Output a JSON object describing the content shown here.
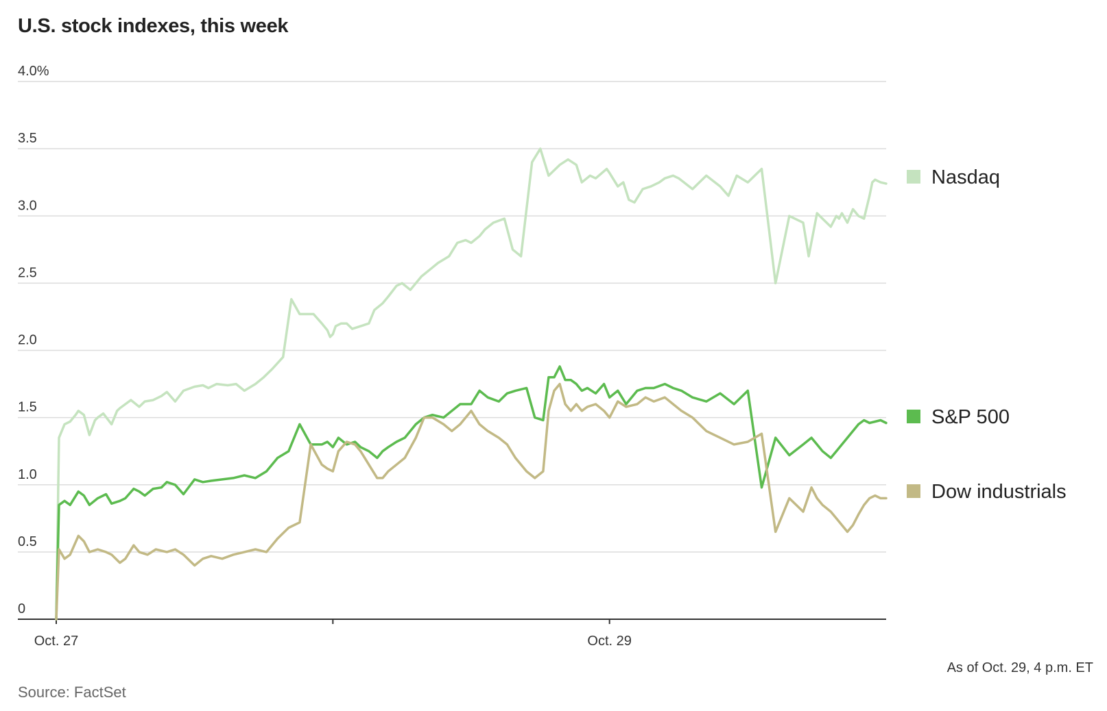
{
  "title": "U.S. stock indexes, this week",
  "note": "As of Oct. 29, 4 p.m. ET",
  "source": "Source: FactSet",
  "chart_data": {
    "type": "line",
    "title": "U.S. stock indexes, this week",
    "xlabel": "",
    "ylabel": "",
    "ylim": [
      0,
      4.0
    ],
    "yticks": [
      0,
      0.5,
      1.0,
      1.5,
      2.0,
      2.5,
      3.0,
      3.5,
      4.0
    ],
    "ytick_labels": [
      "0",
      "0.5",
      "1.0",
      "1.5",
      "2.0",
      "2.5",
      "3.0",
      "3.5",
      "4.0%"
    ],
    "xlim": [
      0,
      3
    ],
    "xticks": [
      0,
      1,
      2
    ],
    "xtick_labels": [
      "Oct. 27",
      "",
      "Oct. 29"
    ],
    "grid": true,
    "legend": "right",
    "series": [
      {
        "name": "Nasdaq",
        "color": "#c5e3bf",
        "x": [
          0,
          0.01,
          0.03,
          0.05,
          0.07,
          0.08,
          0.1,
          0.12,
          0.14,
          0.15,
          0.17,
          0.2,
          0.22,
          0.23,
          0.25,
          0.27,
          0.3,
          0.32,
          0.35,
          0.38,
          0.4,
          0.43,
          0.46,
          0.5,
          0.53,
          0.55,
          0.58,
          0.62,
          0.65,
          0.68,
          0.72,
          0.75,
          0.78,
          0.82,
          0.85,
          0.88,
          0.93,
          0.96,
          0.98,
          0.99,
          1.0,
          1.01,
          1.03,
          1.05,
          1.07,
          1.1,
          1.13,
          1.15,
          1.18,
          1.2,
          1.23,
          1.25,
          1.28,
          1.32,
          1.35,
          1.38,
          1.42,
          1.45,
          1.48,
          1.5,
          1.53,
          1.55,
          1.58,
          1.62,
          1.65,
          1.68,
          1.72,
          1.75,
          1.78,
          1.82,
          1.85,
          1.88,
          1.9,
          1.93,
          1.95,
          1.99,
          2.0,
          2.03,
          2.05,
          2.07,
          2.09,
          2.12,
          2.15,
          2.18,
          2.2,
          2.23,
          2.25,
          2.3,
          2.35,
          2.4,
          2.43,
          2.46,
          2.5,
          2.55,
          2.6,
          2.65,
          2.7,
          2.72,
          2.75,
          2.77,
          2.8,
          2.82,
          2.83,
          2.84,
          2.86,
          2.88,
          2.9,
          2.92,
          2.94,
          2.95,
          2.96,
          2.98,
          3.0
        ],
        "values": [
          0,
          1.35,
          1.45,
          1.47,
          1.52,
          1.55,
          1.52,
          1.37,
          1.48,
          1.5,
          1.53,
          1.45,
          1.55,
          1.57,
          1.6,
          1.63,
          1.58,
          1.62,
          1.63,
          1.66,
          1.69,
          1.62,
          1.7,
          1.73,
          1.74,
          1.72,
          1.75,
          1.74,
          1.75,
          1.7,
          1.75,
          1.8,
          1.86,
          1.95,
          2.38,
          2.27,
          2.27,
          2.2,
          2.15,
          2.1,
          2.12,
          2.18,
          2.2,
          2.2,
          2.16,
          2.18,
          2.2,
          2.3,
          2.35,
          2.4,
          2.48,
          2.5,
          2.45,
          2.55,
          2.6,
          2.65,
          2.7,
          2.8,
          2.82,
          2.8,
          2.85,
          2.9,
          2.95,
          2.98,
          2.75,
          2.7,
          3.4,
          3.5,
          3.3,
          3.38,
          3.42,
          3.38,
          3.25,
          3.3,
          3.28,
          3.35,
          3.32,
          3.22,
          3.25,
          3.12,
          3.1,
          3.2,
          3.22,
          3.25,
          3.28,
          3.3,
          3.28,
          3.2,
          3.3,
          3.22,
          3.15,
          3.3,
          3.25,
          3.35,
          2.5,
          3.0,
          2.95,
          2.7,
          3.02,
          2.98,
          2.92,
          3.0,
          2.98,
          3.02,
          2.95,
          3.05,
          3.0,
          2.98,
          3.15,
          3.25,
          3.27,
          3.25,
          3.24
        ]
      },
      {
        "name": "S&P 500",
        "color": "#5cbb4f",
        "x": [
          0,
          0.01,
          0.03,
          0.05,
          0.08,
          0.1,
          0.12,
          0.15,
          0.18,
          0.2,
          0.23,
          0.25,
          0.28,
          0.3,
          0.32,
          0.35,
          0.38,
          0.4,
          0.43,
          0.46,
          0.5,
          0.53,
          0.56,
          0.6,
          0.64,
          0.68,
          0.72,
          0.76,
          0.8,
          0.84,
          0.88,
          0.92,
          0.96,
          0.98,
          0.99,
          1.0,
          1.02,
          1.05,
          1.08,
          1.1,
          1.13,
          1.16,
          1.18,
          1.2,
          1.23,
          1.26,
          1.3,
          1.33,
          1.36,
          1.4,
          1.43,
          1.46,
          1.5,
          1.53,
          1.56,
          1.6,
          1.63,
          1.66,
          1.7,
          1.73,
          1.76,
          1.78,
          1.8,
          1.82,
          1.84,
          1.86,
          1.88,
          1.9,
          1.92,
          1.95,
          1.98,
          2.0,
          2.03,
          2.06,
          2.1,
          2.13,
          2.16,
          2.2,
          2.23,
          2.26,
          2.3,
          2.35,
          2.4,
          2.45,
          2.5,
          2.55,
          2.6,
          2.65,
          2.7,
          2.73,
          2.75,
          2.77,
          2.8,
          2.82,
          2.84,
          2.86,
          2.88,
          2.9,
          2.92,
          2.94,
          2.96,
          2.98,
          3.0
        ],
        "values": [
          0,
          0.85,
          0.88,
          0.85,
          0.95,
          0.92,
          0.85,
          0.9,
          0.93,
          0.86,
          0.88,
          0.9,
          0.97,
          0.95,
          0.92,
          0.97,
          0.98,
          1.02,
          1.0,
          0.93,
          1.04,
          1.02,
          1.03,
          1.04,
          1.05,
          1.07,
          1.05,
          1.1,
          1.2,
          1.25,
          1.45,
          1.3,
          1.3,
          1.32,
          1.3,
          1.28,
          1.35,
          1.3,
          1.32,
          1.28,
          1.25,
          1.2,
          1.25,
          1.28,
          1.32,
          1.35,
          1.45,
          1.5,
          1.52,
          1.5,
          1.55,
          1.6,
          1.6,
          1.7,
          1.65,
          1.62,
          1.68,
          1.7,
          1.72,
          1.5,
          1.48,
          1.8,
          1.8,
          1.88,
          1.78,
          1.78,
          1.75,
          1.7,
          1.72,
          1.68,
          1.75,
          1.65,
          1.7,
          1.6,
          1.7,
          1.72,
          1.72,
          1.75,
          1.72,
          1.7,
          1.65,
          1.62,
          1.68,
          1.6,
          1.7,
          0.98,
          1.35,
          1.22,
          1.3,
          1.35,
          1.3,
          1.25,
          1.2,
          1.25,
          1.3,
          1.35,
          1.4,
          1.45,
          1.48,
          1.46,
          1.47,
          1.48,
          1.46
        ]
      },
      {
        "name": "Dow industrials",
        "color": "#c2b985",
        "x": [
          0,
          0.01,
          0.03,
          0.05,
          0.08,
          0.1,
          0.12,
          0.15,
          0.18,
          0.2,
          0.23,
          0.25,
          0.28,
          0.3,
          0.33,
          0.36,
          0.4,
          0.43,
          0.46,
          0.5,
          0.53,
          0.56,
          0.6,
          0.64,
          0.68,
          0.72,
          0.76,
          0.8,
          0.84,
          0.88,
          0.92,
          0.96,
          0.98,
          1.0,
          1.02,
          1.05,
          1.08,
          1.1,
          1.13,
          1.16,
          1.18,
          1.2,
          1.23,
          1.26,
          1.3,
          1.33,
          1.36,
          1.4,
          1.43,
          1.46,
          1.5,
          1.53,
          1.56,
          1.6,
          1.63,
          1.66,
          1.7,
          1.73,
          1.76,
          1.78,
          1.8,
          1.82,
          1.84,
          1.86,
          1.88,
          1.9,
          1.92,
          1.95,
          1.98,
          2.0,
          2.03,
          2.06,
          2.1,
          2.13,
          2.16,
          2.2,
          2.23,
          2.26,
          2.3,
          2.35,
          2.4,
          2.45,
          2.5,
          2.55,
          2.6,
          2.65,
          2.7,
          2.73,
          2.75,
          2.77,
          2.8,
          2.82,
          2.84,
          2.86,
          2.88,
          2.9,
          2.92,
          2.94,
          2.96,
          2.98,
          3.0
        ],
        "values": [
          0,
          0.52,
          0.45,
          0.48,
          0.62,
          0.58,
          0.5,
          0.52,
          0.5,
          0.48,
          0.42,
          0.45,
          0.55,
          0.5,
          0.48,
          0.52,
          0.5,
          0.52,
          0.48,
          0.4,
          0.45,
          0.47,
          0.45,
          0.48,
          0.5,
          0.52,
          0.5,
          0.6,
          0.68,
          0.72,
          1.3,
          1.15,
          1.12,
          1.1,
          1.25,
          1.32,
          1.3,
          1.25,
          1.15,
          1.05,
          1.05,
          1.1,
          1.15,
          1.2,
          1.35,
          1.5,
          1.5,
          1.45,
          1.4,
          1.45,
          1.55,
          1.45,
          1.4,
          1.35,
          1.3,
          1.2,
          1.1,
          1.05,
          1.1,
          1.55,
          1.7,
          1.75,
          1.6,
          1.55,
          1.6,
          1.55,
          1.58,
          1.6,
          1.55,
          1.5,
          1.62,
          1.58,
          1.6,
          1.65,
          1.62,
          1.65,
          1.6,
          1.55,
          1.5,
          1.4,
          1.35,
          1.3,
          1.32,
          1.38,
          0.65,
          0.9,
          0.8,
          0.98,
          0.9,
          0.85,
          0.8,
          0.75,
          0.7,
          0.65,
          0.7,
          0.78,
          0.85,
          0.9,
          0.92,
          0.9,
          0.9
        ]
      }
    ]
  }
}
